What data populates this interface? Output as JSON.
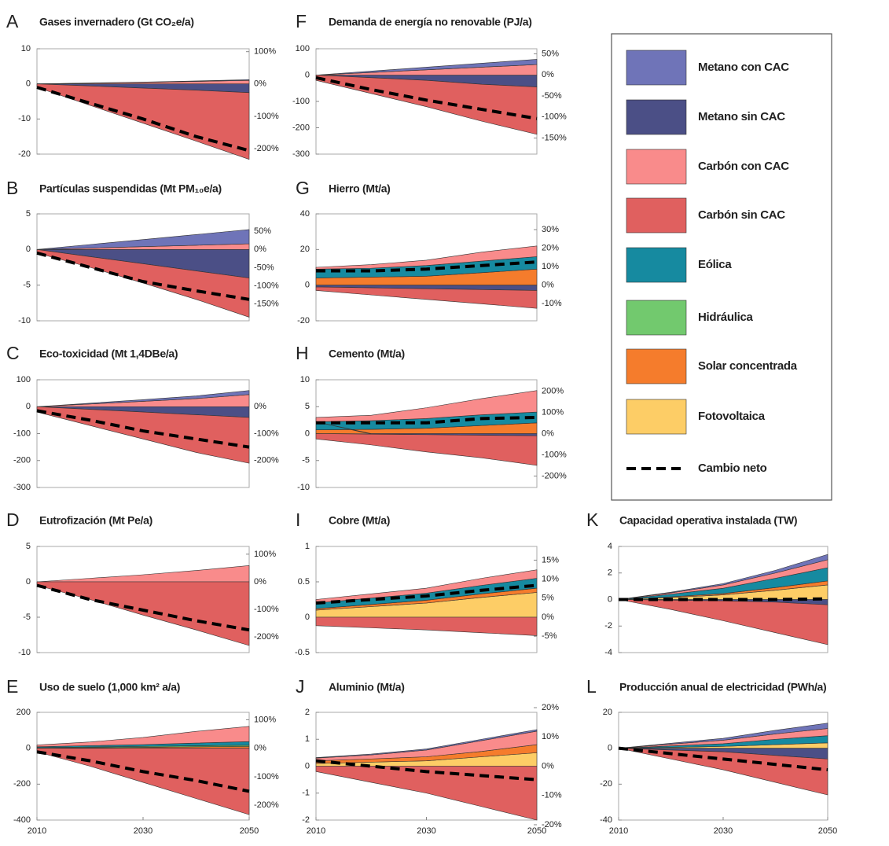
{
  "chart_data": {
    "type": "area",
    "x": [
      2010,
      2020,
      2030,
      2040,
      2050
    ],
    "xlim": [
      2010,
      2050
    ],
    "xticks": [
      2010,
      2030,
      2050
    ],
    "legend": [
      {
        "name": "Metano con CAC",
        "color": "#6f74b8"
      },
      {
        "name": "Metano sin CAC",
        "color": "#4b4f86"
      },
      {
        "name": "Carbón con CAC",
        "color": "#f98b8b"
      },
      {
        "name": "Carbón sin CAC",
        "color": "#e0605f"
      },
      {
        "name": "Eólica",
        "color": "#168aa0"
      },
      {
        "name": "Hidráulica",
        "color": "#72c96e"
      },
      {
        "name": "Solar concentrada",
        "color": "#f57c2c"
      },
      {
        "name": "Fotovoltaica",
        "color": "#fdcd66"
      },
      {
        "name": "Cambio neto",
        "color": "#000000",
        "line_style": "dashed"
      }
    ],
    "panels": [
      {
        "letter": "A",
        "title": "Gases invernadero (Gt CO₂e/a)",
        "ylim": [
          -20,
          10
        ],
        "yticks": [
          -20,
          -10,
          0,
          10
        ],
        "y2lim": [
          -217,
          109
        ],
        "y2ticks": [
          {
            "value": 100,
            "label": "100%"
          },
          {
            "value": 0,
            "label": "0%"
          },
          {
            "value": -100,
            "label": "-100%"
          },
          {
            "value": -200,
            "label": "-200%"
          }
        ],
        "series": [
          [
            0,
            0.05,
            0.1,
            0.15,
            0.2
          ],
          [
            0,
            -0.6,
            -1.2,
            -1.8,
            -2.5
          ],
          [
            0,
            0.2,
            0.4,
            0.7,
            1
          ],
          [
            -1,
            -5.5,
            -10,
            -14.5,
            -19
          ],
          null,
          null,
          null,
          null,
          [
            -1,
            -5.5,
            -10,
            -15,
            -19
          ]
        ]
      },
      {
        "letter": "B",
        "title": "Partículas suspendidas (Mt PM₁₀e/a)",
        "ylim": [
          -10,
          5
        ],
        "yticks": [
          -10,
          -5,
          0,
          5
        ],
        "y2lim": [
          -196,
          98
        ],
        "y2ticks": [
          {
            "value": 50,
            "label": "50%"
          },
          {
            "value": 0,
            "label": "0%"
          },
          {
            "value": -50,
            "label": "-50%"
          },
          {
            "value": -100,
            "label": "-100%"
          },
          {
            "value": -150,
            "label": "-150%"
          }
        ],
        "series": [
          [
            0,
            0.5,
            1,
            1.5,
            2
          ],
          [
            0,
            -1,
            -2,
            -3,
            -4
          ],
          [
            0,
            0.2,
            0.4,
            0.6,
            0.8
          ],
          [
            -0.5,
            -1.5,
            -2.7,
            -4,
            -5.5
          ],
          null,
          null,
          null,
          null,
          [
            -0.5,
            -2.5,
            -4.5,
            -5.8,
            -7
          ]
        ]
      },
      {
        "letter": "C",
        "title": "Eco-toxicidad (Mt 1,4DBe/a)",
        "ylim": [
          -300,
          100
        ],
        "yticks": [
          -300,
          -200,
          -100,
          0,
          100
        ],
        "y2lim": [
          -300,
          100
        ],
        "y2ticks": [
          {
            "value": 0,
            "label": "0%"
          },
          {
            "value": -100,
            "label": "-100%"
          },
          {
            "value": -200,
            "label": "-200%"
          }
        ],
        "series": [
          [
            0,
            3,
            6,
            10,
            15
          ],
          [
            0,
            -10,
            -20,
            -30,
            -40
          ],
          [
            0,
            10,
            20,
            30,
            45
          ],
          [
            -20,
            -60,
            -100,
            -140,
            -170
          ],
          null,
          null,
          null,
          null,
          [
            -15,
            -50,
            -90,
            -120,
            -150
          ]
        ]
      },
      {
        "letter": "D",
        "title": "Eutrofización (Mt Pe/a)",
        "ylim": [
          -10,
          5
        ],
        "yticks": [
          -10,
          -5,
          0,
          5
        ],
        "y2lim": [
          -256,
          128
        ],
        "y2ticks": [
          {
            "value": 100,
            "label": "100%"
          },
          {
            "value": 0,
            "label": "0%"
          },
          {
            "value": -100,
            "label": "-100%"
          },
          {
            "value": -200,
            "label": "-200%"
          }
        ],
        "series": [
          null,
          null,
          [
            0,
            0.5,
            1,
            1.6,
            2.3
          ],
          [
            -0.5,
            -2.5,
            -4.7,
            -6.8,
            -9
          ],
          null,
          null,
          null,
          null,
          [
            -0.5,
            -2.5,
            -4,
            -5.5,
            -6.8
          ]
        ]
      },
      {
        "letter": "E",
        "title": "Uso de suelo (1,000 km² a/a)",
        "ylim": [
          -400,
          200
        ],
        "yticks": [
          -400,
          -200,
          0,
          200
        ],
        "y2lim": [
          -252,
          126
        ],
        "y2ticks": [
          {
            "value": 100,
            "label": "100%"
          },
          {
            "value": 0,
            "label": "0%"
          },
          {
            "value": -100,
            "label": "-100%"
          },
          {
            "value": -200,
            "label": "-200%"
          }
        ],
        "series": [
          null,
          null,
          [
            10,
            20,
            40,
            65,
            85
          ],
          [
            -20,
            -100,
            -190,
            -280,
            -370
          ],
          [
            5,
            8,
            10,
            15,
            20
          ],
          [
            3,
            4,
            5,
            6,
            7
          ],
          [
            0,
            3,
            5,
            8,
            10
          ],
          null,
          [
            -20,
            -70,
            -130,
            -180,
            -240
          ]
        ]
      },
      {
        "letter": "F",
        "title": "Demanda de energía no renovable (PJ/a)",
        "ylim": [
          -300,
          100
        ],
        "yticks": [
          -300,
          -200,
          -100,
          0,
          100
        ],
        "y2lim": [
          -188,
          62
        ],
        "y2ticks": [
          {
            "value": 50,
            "label": "50%"
          },
          {
            "value": 0,
            "label": "0%"
          },
          {
            "value": -50,
            "label": "-50%"
          },
          {
            "value": -100,
            "label": "-100%"
          },
          {
            "value": -150,
            "label": "-150%"
          }
        ],
        "series": [
          [
            0,
            5,
            10,
            15,
            20
          ],
          [
            0,
            -10,
            -20,
            -35,
            -45
          ],
          [
            0,
            10,
            20,
            30,
            40
          ],
          [
            -20,
            -60,
            -100,
            -140,
            -180
          ],
          null,
          null,
          null,
          null,
          [
            -10,
            -55,
            -95,
            -130,
            -165
          ]
        ]
      },
      {
        "letter": "G",
        "title": "Hierro (Mt/a)",
        "ylim": [
          -20,
          40
        ],
        "yticks": [
          -20,
          0,
          20,
          40
        ],
        "y2lim": [
          -19.2,
          38.5
        ],
        "y2ticks": [
          {
            "value": 30,
            "label": "30%"
          },
          {
            "value": 20,
            "label": "20%"
          },
          {
            "value": 10,
            "label": "10%"
          },
          {
            "value": 0,
            "label": "0%"
          },
          {
            "value": -10,
            "label": "-10%"
          }
        ],
        "series": [
          null,
          [
            -1,
            -1.5,
            -2,
            -2.5,
            -3
          ],
          [
            1,
            2,
            3,
            5,
            6
          ],
          [
            -2,
            -4,
            -6,
            -8,
            -10
          ],
          [
            5,
            5,
            6,
            6.5,
            7
          ],
          null,
          [
            4,
            4.5,
            5,
            7,
            9
          ],
          null,
          [
            8,
            8,
            9,
            11,
            13
          ]
        ]
      },
      {
        "letter": "H",
        "title": "Cemento (Mt/a)",
        "ylim": [
          -10,
          10
        ],
        "yticks": [
          -10,
          -5,
          0,
          5,
          10
        ],
        "y2lim": [
          -254,
          254
        ],
        "y2ticks": [
          {
            "value": 200,
            "label": "200%"
          },
          {
            "value": 100,
            "label": "100%"
          },
          {
            "value": 0,
            "label": "0%"
          },
          {
            "value": -100,
            "label": "-100%"
          },
          {
            "value": -200,
            "label": "-200%"
          }
        ],
        "series": [
          null,
          [
            0,
            -0.1,
            -0.2,
            -0.3,
            -0.4
          ],
          [
            0.8,
            1,
            2,
            3,
            4
          ],
          [
            -1,
            -2,
            -3.2,
            -4.2,
            -5.5
          ],
          [
            1.5,
            1.6,
            1.8,
            2,
            2
          ],
          null,
          [
            0.7,
            0.8,
            1,
            1.5,
            2
          ],
          null,
          [
            2,
            2,
            2,
            2.8,
            3
          ]
        ]
      },
      {
        "letter": "I",
        "title": "Cobre (Mt/a)",
        "ylim": [
          -0.5,
          1
        ],
        "yticks": [
          -0.5,
          0,
          0.5,
          1
        ],
        "y2lim": [
          -9.3,
          18.6
        ],
        "y2ticks": [
          {
            "value": 15,
            "label": "15%"
          },
          {
            "value": 10,
            "label": "10%"
          },
          {
            "value": 5,
            "label": "5%"
          },
          {
            "value": 0,
            "label": "0%"
          },
          {
            "value": -5,
            "label": "-5%"
          }
        ],
        "series": [
          null,
          null,
          [
            0.05,
            0.06,
            0.07,
            0.1,
            0.12
          ],
          [
            -0.12,
            -0.15,
            -0.18,
            -0.22,
            -0.26
          ],
          [
            0.08,
            0.09,
            0.1,
            0.12,
            0.14
          ],
          null,
          [
            0.02,
            0.03,
            0.04,
            0.05,
            0.06
          ],
          [
            0.1,
            0.15,
            0.2,
            0.28,
            0.35
          ],
          [
            0.2,
            0.25,
            0.3,
            0.38,
            0.45
          ]
        ]
      },
      {
        "letter": "J",
        "title": "Aluminio (Mt/a)",
        "ylim": [
          -2,
          2
        ],
        "yticks": [
          -2,
          -1,
          0,
          1,
          2
        ],
        "y2lim": [
          -18.4,
          18.4
        ],
        "y2ticks": [
          {
            "value": 20,
            "label": "20%"
          },
          {
            "value": 10,
            "label": "10%"
          },
          {
            "value": 0,
            "label": "0%"
          },
          {
            "value": -10,
            "label": "-10%"
          },
          {
            "value": -20,
            "label": "-20%"
          }
        ],
        "series": [
          [
            0.02,
            0.03,
            0.04,
            0.05,
            0.06
          ],
          null,
          [
            0.1,
            0.15,
            0.25,
            0.4,
            0.5
          ],
          [
            -0.2,
            -0.6,
            -1,
            -1.5,
            -2
          ],
          null,
          null,
          [
            0.1,
            0.12,
            0.15,
            0.2,
            0.3
          ],
          [
            0.1,
            0.15,
            0.2,
            0.35,
            0.5
          ],
          [
            0.2,
            0,
            -0.2,
            -0.35,
            -0.5
          ]
        ]
      },
      {
        "letter": "K",
        "title": "Capacidad operativa instalada (TW)",
        "ylim": [
          -4,
          4
        ],
        "yticks": [
          -4,
          -2,
          0,
          2,
          4
        ],
        "series": [
          [
            0,
            0.05,
            0.1,
            0.2,
            0.4
          ],
          [
            0,
            -0.05,
            -0.1,
            -0.2,
            -0.4
          ],
          [
            0,
            0.1,
            0.25,
            0.4,
            0.6
          ],
          [
            0,
            -0.7,
            -1.5,
            -2.3,
            -3
          ],
          [
            0,
            0.2,
            0.4,
            0.7,
            1
          ],
          null,
          [
            0,
            0.05,
            0.1,
            0.2,
            0.3
          ],
          [
            0,
            0.15,
            0.35,
            0.7,
            1.1
          ],
          [
            0,
            0,
            0,
            0,
            0.05
          ]
        ]
      },
      {
        "letter": "L",
        "title": "Producción anual de electricidad (PWh/a)",
        "ylim": [
          -40,
          20
        ],
        "yticks": [
          -40,
          -20,
          0,
          20
        ],
        "series": [
          [
            0,
            0.5,
            1,
            2,
            3
          ],
          [
            0,
            -1,
            -2,
            -4,
            -6
          ],
          [
            0,
            1,
            2,
            3,
            4
          ],
          [
            0,
            -5,
            -10,
            -15,
            -20
          ],
          [
            0,
            0.8,
            1.5,
            3,
            4
          ],
          null,
          null,
          [
            0,
            0.5,
            1,
            2,
            3
          ],
          [
            0,
            -3,
            -6,
            -9,
            -12
          ]
        ]
      }
    ]
  }
}
